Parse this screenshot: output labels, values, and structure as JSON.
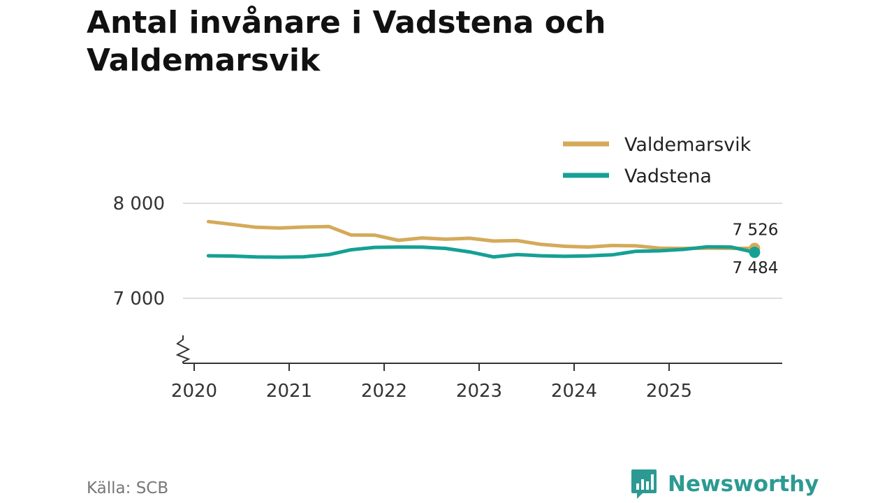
{
  "header": {
    "title": "Antal invånare i Vadstena och Valdemarsvik"
  },
  "footer": {
    "source": "Källa: SCB",
    "brand": "Newsworthy"
  },
  "colors": {
    "valdemarsvik": "#d4aa5a",
    "vadstena": "#15a095",
    "grid": "#dddddd",
    "axis": "#333333",
    "brand": "#2c9a92"
  },
  "chart_data": {
    "type": "line",
    "title": "Antal invånare i Vadstena och Valdemarsvik",
    "xlabel": "",
    "ylabel": "",
    "ylim": [
      6320,
      8000
    ],
    "xlim": [
      2020,
      2026.2
    ],
    "y_ticks": [
      7000,
      8000
    ],
    "y_tick_labels": [
      "7 000",
      "8 000"
    ],
    "x_ticks": [
      2020,
      2021,
      2022,
      2023,
      2024,
      2025
    ],
    "x_tick_labels": [
      "2020",
      "2021",
      "2022",
      "2023",
      "2024",
      "2025"
    ],
    "y_axis_break": true,
    "grid": true,
    "legend_position": "top-right",
    "series": [
      {
        "name": "Valdemarsvik",
        "color": "#d4aa5a",
        "end_label": "7 526",
        "points": [
          [
            2020.15,
            7807
          ],
          [
            2020.4,
            7778
          ],
          [
            2020.65,
            7748
          ],
          [
            2020.9,
            7740
          ],
          [
            2021.15,
            7750
          ],
          [
            2021.42,
            7755
          ],
          [
            2021.65,
            7667
          ],
          [
            2021.9,
            7665
          ],
          [
            2022.15,
            7610
          ],
          [
            2022.4,
            7635
          ],
          [
            2022.65,
            7622
          ],
          [
            2022.9,
            7632
          ],
          [
            2023.15,
            7603
          ],
          [
            2023.4,
            7607
          ],
          [
            2023.65,
            7568
          ],
          [
            2023.9,
            7548
          ],
          [
            2024.15,
            7540
          ],
          [
            2024.4,
            7556
          ],
          [
            2024.65,
            7552
          ],
          [
            2024.9,
            7528
          ],
          [
            2025.15,
            7525
          ],
          [
            2025.4,
            7528
          ],
          [
            2025.65,
            7526
          ],
          [
            2025.9,
            7526
          ]
        ]
      },
      {
        "name": "Vadstena",
        "color": "#15a095",
        "end_label": "7 484",
        "points": [
          [
            2020.15,
            7448
          ],
          [
            2020.4,
            7445
          ],
          [
            2020.65,
            7435
          ],
          [
            2020.9,
            7433
          ],
          [
            2021.15,
            7437
          ],
          [
            2021.42,
            7460
          ],
          [
            2021.65,
            7510
          ],
          [
            2021.9,
            7536
          ],
          [
            2022.15,
            7540
          ],
          [
            2022.4,
            7538
          ],
          [
            2022.65,
            7525
          ],
          [
            2022.9,
            7488
          ],
          [
            2023.15,
            7436
          ],
          [
            2023.4,
            7460
          ],
          [
            2023.65,
            7448
          ],
          [
            2023.9,
            7442
          ],
          [
            2024.15,
            7446
          ],
          [
            2024.4,
            7457
          ],
          [
            2024.65,
            7495
          ],
          [
            2024.9,
            7500
          ],
          [
            2025.15,
            7515
          ],
          [
            2025.4,
            7542
          ],
          [
            2025.65,
            7540
          ],
          [
            2025.9,
            7484
          ]
        ]
      }
    ]
  }
}
